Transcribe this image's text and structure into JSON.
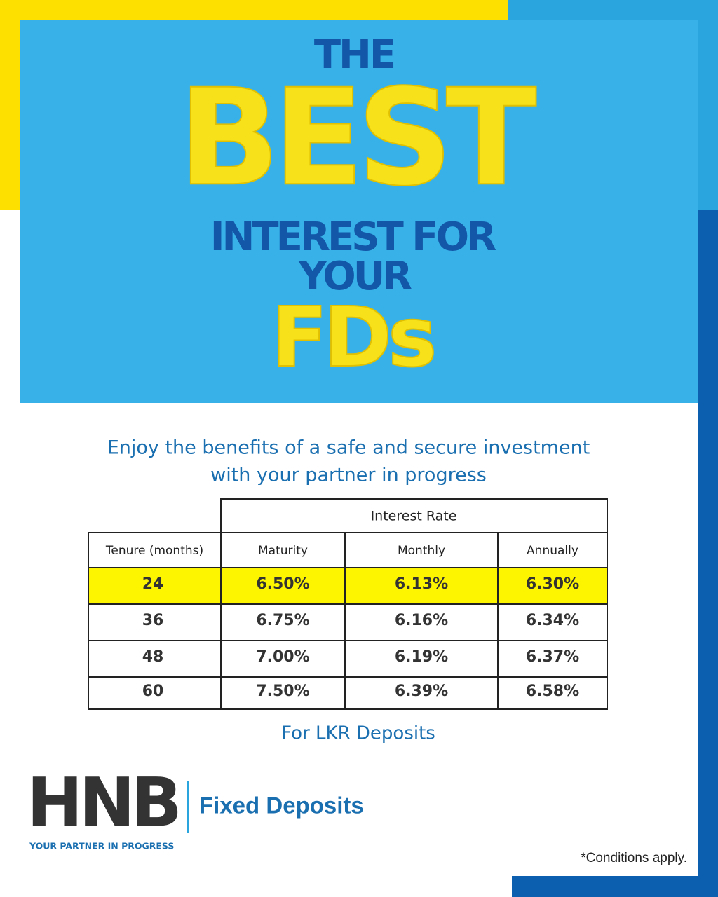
{
  "headline": {
    "line1": "THE",
    "line2": "BEST",
    "line3": "INTEREST FOR",
    "line4": "YOUR",
    "line5": "FDs"
  },
  "tagline": [
    "Enjoy the benefits of a safe and secure investment",
    "with your partner in progress"
  ],
  "table": {
    "group_header": "Interest Rate",
    "columns": [
      "Tenure (months)",
      "Maturity",
      "Monthly",
      "Annually"
    ],
    "rows": [
      [
        "24",
        "6.50%",
        "6.13%",
        "6.30%"
      ],
      [
        "36",
        "6.75%",
        "6.16%",
        "6.34%"
      ],
      [
        "48",
        "7.00%",
        "6.19%",
        "6.37%"
      ],
      [
        "60",
        "7.50%",
        "6.39%",
        "6.58%"
      ]
    ]
  },
  "footnote": "For LKR Deposits",
  "logo": {
    "mark": "HNB",
    "slogan": "YOUR PARTNER IN PROGRESS"
  },
  "product": "Fixed Deposits",
  "disclaimer": "*Conditions apply."
}
